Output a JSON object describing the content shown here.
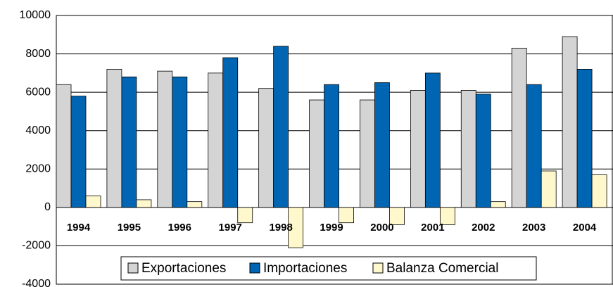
{
  "chart_data": {
    "type": "bar",
    "categories": [
      "1994",
      "1995",
      "1996",
      "1997",
      "1998",
      "1999",
      "2000",
      "2001",
      "2002",
      "2003",
      "2004"
    ],
    "series": [
      {
        "name": "Exportaciones",
        "color": "#d4d4d4",
        "values": [
          6400,
          7200,
          7100,
          7000,
          6200,
          5600,
          5600,
          6100,
          6100,
          8300,
          8900
        ]
      },
      {
        "name": "Importaciones",
        "color": "#0066b3",
        "values": [
          5800,
          6800,
          6800,
          7800,
          8400,
          6400,
          6500,
          7000,
          5900,
          6400,
          7200
        ]
      },
      {
        "name": "Balanza Comercial",
        "color": "#fff8cc",
        "values": [
          600,
          400,
          300,
          -800,
          -2100,
          -800,
          -900,
          -900,
          300,
          1900,
          1700
        ]
      }
    ],
    "ylim": [
      -4000,
      10000
    ],
    "yticks": [
      -4000,
      -2000,
      0,
      2000,
      4000,
      6000,
      8000,
      10000
    ],
    "grid": true,
    "legend": "bottom"
  }
}
